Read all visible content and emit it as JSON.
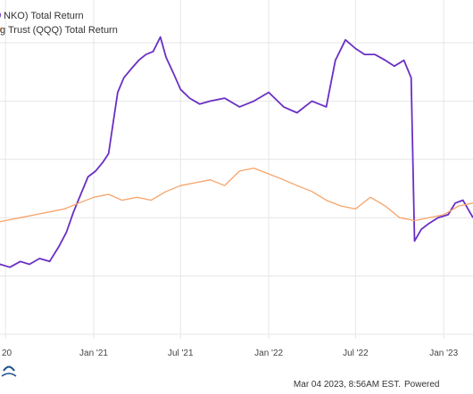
{
  "legend": [
    {
      "label": "NKO) Total Return",
      "color": "#6a2fc4"
    },
    {
      "label": "g Trust (QQQ) Total Return",
      "color": "#f5a46a"
    }
  ],
  "footer": {
    "timestamp": "Mar 04 2023, 8:56AM EST.",
    "powered": "Powered"
  },
  "colors": {
    "series_a": "#6a2fc4",
    "series_b": "#f5a46a",
    "grid": "#e6e6e6",
    "background": "#ffffff",
    "logo": "#1b4f8a"
  },
  "chart_data": {
    "type": "line",
    "xlabel": "",
    "ylabel": "",
    "grid": true,
    "legend_placement": "top-left",
    "x_ticks": [
      "20",
      "Jan '21",
      "Jul '21",
      "Jan '22",
      "Jul '22",
      "Jan '23"
    ],
    "x_tick_dates": [
      "2020-07-01",
      "2021-01-01",
      "2021-07-01",
      "2022-01-01",
      "2022-07-01",
      "2023-01-01"
    ],
    "x_range": [
      "2020-06-01",
      "2023-03-03"
    ],
    "y_range": [
      0,
      100
    ],
    "series": [
      {
        "name": "NKO) Total Return",
        "color": "#6a2fc4",
        "points": [
          [
            "2020-06-01",
            22
          ],
          [
            "2020-06-20",
            24
          ],
          [
            "2020-07-10",
            23
          ],
          [
            "2020-08-01",
            25
          ],
          [
            "2020-08-20",
            24
          ],
          [
            "2020-09-10",
            26
          ],
          [
            "2020-10-01",
            25
          ],
          [
            "2020-10-20",
            30
          ],
          [
            "2020-11-05",
            35
          ],
          [
            "2020-11-20",
            42
          ],
          [
            "2020-12-05",
            48
          ],
          [
            "2020-12-20",
            54
          ],
          [
            "2021-01-05",
            56
          ],
          [
            "2021-01-20",
            59
          ],
          [
            "2021-02-01",
            62
          ],
          [
            "2021-02-10",
            72
          ],
          [
            "2021-02-20",
            83
          ],
          [
            "2021-03-05",
            88
          ],
          [
            "2021-03-20",
            91
          ],
          [
            "2021-04-05",
            94
          ],
          [
            "2021-04-20",
            96
          ],
          [
            "2021-05-05",
            97
          ],
          [
            "2021-05-20",
            102
          ],
          [
            "2021-06-01",
            95
          ],
          [
            "2021-06-15",
            90
          ],
          [
            "2021-07-01",
            84
          ],
          [
            "2021-07-20",
            81
          ],
          [
            "2021-08-10",
            79
          ],
          [
            "2021-09-01",
            80
          ],
          [
            "2021-10-01",
            81
          ],
          [
            "2021-11-01",
            78
          ],
          [
            "2021-12-01",
            80
          ],
          [
            "2022-01-01",
            83
          ],
          [
            "2022-02-01",
            78
          ],
          [
            "2022-03-01",
            76
          ],
          [
            "2022-04-01",
            80
          ],
          [
            "2022-05-01",
            78
          ],
          [
            "2022-05-20",
            94
          ],
          [
            "2022-06-10",
            101
          ],
          [
            "2022-07-01",
            98
          ],
          [
            "2022-07-20",
            96
          ],
          [
            "2022-08-10",
            96
          ],
          [
            "2022-09-01",
            94
          ],
          [
            "2022-09-20",
            92
          ],
          [
            "2022-10-10",
            94
          ],
          [
            "2022-10-25",
            88
          ],
          [
            "2022-11-01",
            32
          ],
          [
            "2022-11-15",
            36
          ],
          [
            "2022-12-01",
            38
          ],
          [
            "2022-12-20",
            40
          ],
          [
            "2023-01-10",
            41
          ],
          [
            "2023-01-25",
            45
          ],
          [
            "2023-02-10",
            46
          ],
          [
            "2023-03-03",
            40
          ]
        ]
      },
      {
        "name": "g Trust (QQQ) Total Return",
        "color": "#f5a46a",
        "points": [
          [
            "2020-06-01",
            38
          ],
          [
            "2020-07-01",
            39
          ],
          [
            "2020-08-01",
            40
          ],
          [
            "2020-09-01",
            41
          ],
          [
            "2020-10-01",
            42
          ],
          [
            "2020-11-01",
            43
          ],
          [
            "2020-12-01",
            45
          ],
          [
            "2021-01-01",
            47
          ],
          [
            "2021-02-01",
            48
          ],
          [
            "2021-03-01",
            46
          ],
          [
            "2021-04-01",
            47
          ],
          [
            "2021-05-01",
            46
          ],
          [
            "2021-06-01",
            49
          ],
          [
            "2021-07-01",
            51
          ],
          [
            "2021-08-01",
            52
          ],
          [
            "2021-09-01",
            53
          ],
          [
            "2021-10-01",
            51
          ],
          [
            "2021-11-01",
            56
          ],
          [
            "2021-12-01",
            57
          ],
          [
            "2022-01-01",
            55
          ],
          [
            "2022-02-01",
            53
          ],
          [
            "2022-03-01",
            51
          ],
          [
            "2022-04-01",
            49
          ],
          [
            "2022-05-01",
            46
          ],
          [
            "2022-06-01",
            44
          ],
          [
            "2022-07-01",
            43
          ],
          [
            "2022-08-01",
            47
          ],
          [
            "2022-09-01",
            44
          ],
          [
            "2022-10-01",
            40
          ],
          [
            "2022-11-01",
            39
          ],
          [
            "2022-12-01",
            40
          ],
          [
            "2023-01-01",
            41
          ],
          [
            "2023-02-01",
            44
          ],
          [
            "2023-03-03",
            45
          ]
        ]
      }
    ]
  }
}
